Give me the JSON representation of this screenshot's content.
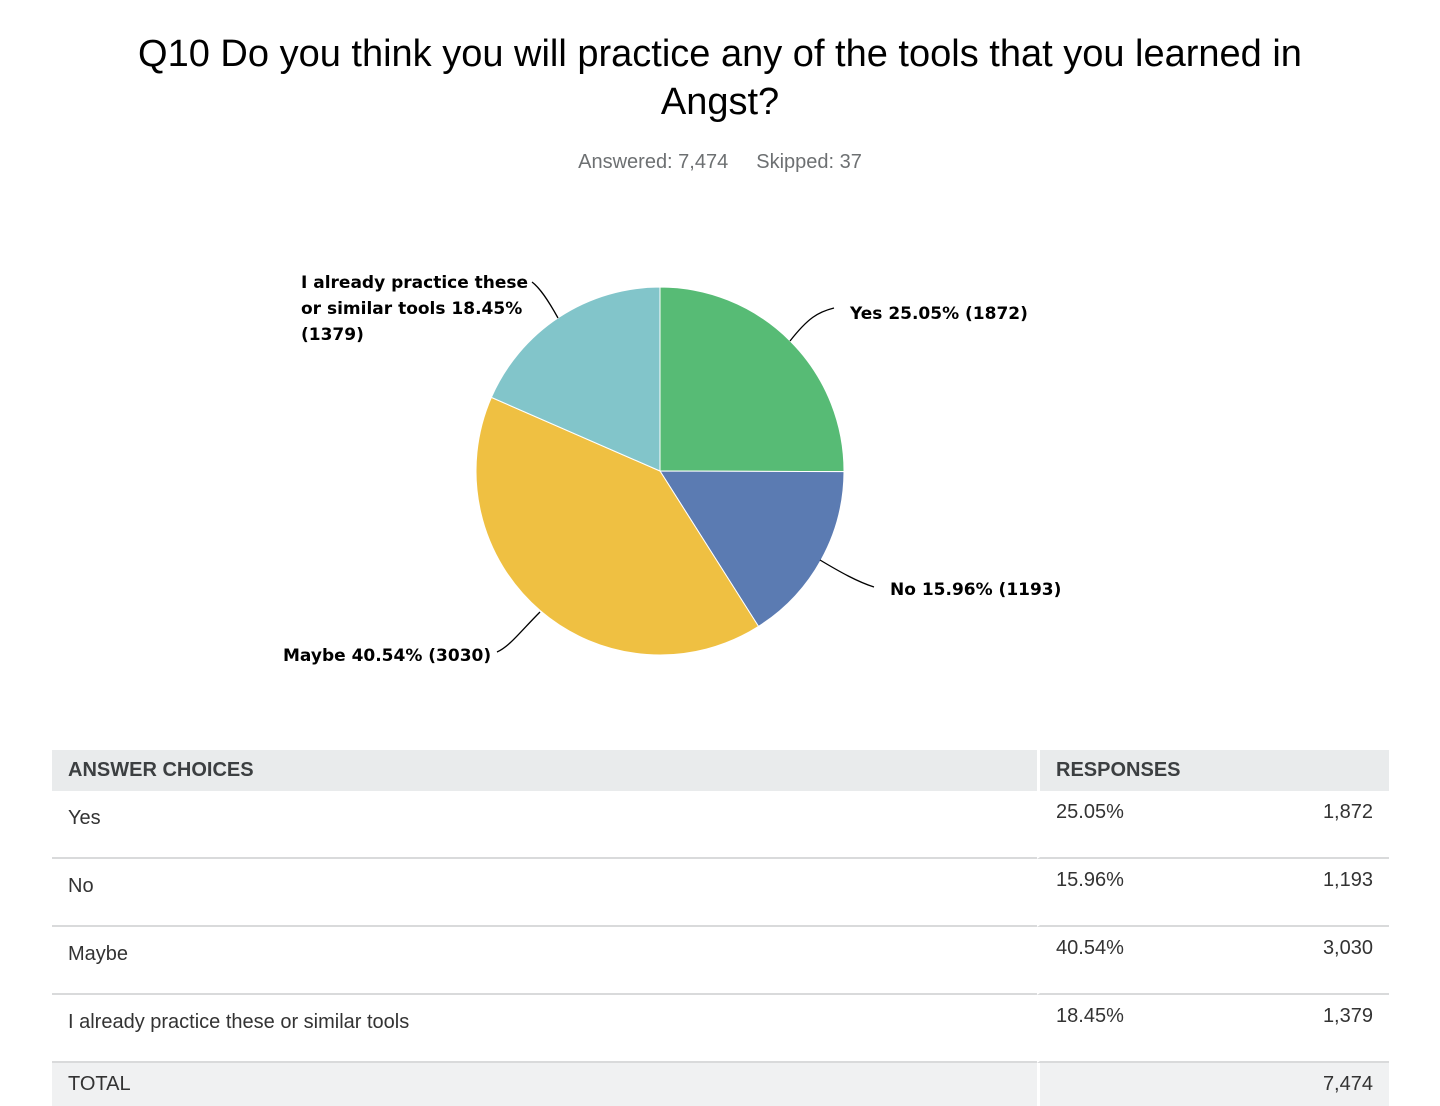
{
  "chart_data": {
    "type": "pie",
    "title": "Q10 Do you think you will practice any of the tools that you learned in Angst?",
    "subtitle": {
      "answered": "Answered: 7,474",
      "skipped": "Skipped: 37"
    },
    "slices": [
      {
        "name": "Yes",
        "percent": 25.05,
        "count": 1872,
        "color": "#57bb75",
        "label_lines": [
          "Yes 25.05% (1872)"
        ]
      },
      {
        "name": "No",
        "percent": 15.96,
        "count": 1193,
        "color": "#5b7bb2",
        "label_lines": [
          "No 15.96% (1193)"
        ]
      },
      {
        "name": "Maybe",
        "percent": 40.54,
        "count": 3030,
        "color": "#efc042",
        "label_lines": [
          "Maybe 40.54% (3030)"
        ]
      },
      {
        "name": "I already practice these or similar tools",
        "percent": 18.45,
        "count": 1379,
        "color": "#82c5ca",
        "label_lines": [
          "I already practice these",
          "or similar tools 18.45%",
          "(1379)"
        ]
      }
    ]
  },
  "table": {
    "headers": {
      "choices": "ANSWER CHOICES",
      "responses": "RESPONSES"
    },
    "rows": [
      {
        "choice": "Yes",
        "percent": "25.05%",
        "count": "1,872"
      },
      {
        "choice": "No",
        "percent": "15.96%",
        "count": "1,193"
      },
      {
        "choice": "Maybe",
        "percent": "40.54%",
        "count": "3,030"
      },
      {
        "choice": "I already practice these or similar tools",
        "percent": "18.45%",
        "count": "1,379"
      }
    ],
    "total_label": "TOTAL",
    "total_count": "7,474"
  }
}
